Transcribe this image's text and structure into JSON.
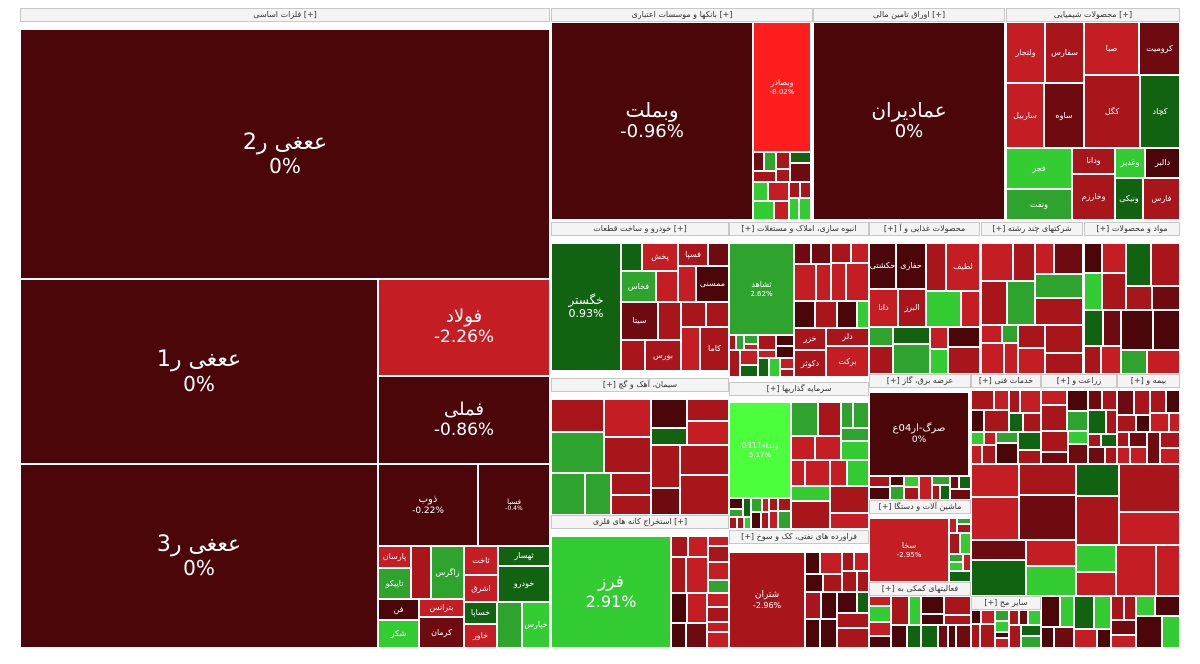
{
  "sectors": [
    {
      "id": "sec-basic-metals",
      "label": "فلزات اساسی [+]"
    },
    {
      "id": "sec-banks",
      "label": "بانکها و موسسات اعتباری [+]"
    },
    {
      "id": "sec-fixed-income",
      "label": "اوراق تامین مالی [+]"
    },
    {
      "id": "sec-chemicals",
      "label": "محصولات شیمیایی [+]"
    },
    {
      "id": "sec-auto",
      "label": "خودرو و ساخت قطعات [+]"
    },
    {
      "id": "sec-multi",
      "label": "[+] انبوه سازی، املاک و مستغلات"
    },
    {
      "id": "sec-food",
      "label": "[+] محصولات غذایی و آ"
    },
    {
      "id": "sec-chains",
      "label": "[+] شرکتهای چند رشته"
    },
    {
      "id": "sec-drugs",
      "label": "[+] مواد و محصولات"
    },
    {
      "id": "sec-cement",
      "label": "[+] سیمان، آهک و گچ"
    },
    {
      "id": "sec-investment",
      "label": "[+] سرمایه گذاریها"
    },
    {
      "id": "sec-utilities",
      "label": "[+] عرضه برق، گاز"
    },
    {
      "id": "sec-services",
      "label": "[+] خدمات فنی"
    },
    {
      "id": "sec-agri",
      "label": "[+] زراعت و"
    },
    {
      "id": "sec-insurance",
      "label": "[+] بیمه و"
    },
    {
      "id": "sec-oil",
      "label": "استخراج کانه های فلزی [+]"
    },
    {
      "id": "sec-nonmetal",
      "label": "[+] فراورده های نفتی، کک و سوخ"
    },
    {
      "id": "sec-machinery",
      "label": "[+] ماشین آلات و دستگا"
    },
    {
      "id": "sec-support",
      "label": "[+] فعالیتهای کمکی به"
    },
    {
      "id": "sec-other",
      "label": "[+] سایر مح"
    }
  ],
  "tiles": [
    {
      "id": "t1",
      "symbol": "ععغی ر2",
      "change": "0%"
    },
    {
      "id": "t2",
      "symbol": "ععغی ر1",
      "change": "0%"
    },
    {
      "id": "t3",
      "symbol": "ععغی ر3",
      "change": "0%"
    },
    {
      "id": "t4",
      "symbol": "فولاد",
      "change": "-2.26%"
    },
    {
      "id": "t5",
      "symbol": "فملی",
      "change": "-0.86%"
    },
    {
      "id": "t6",
      "symbol": "ذوب",
      "change": "-0.22%"
    },
    {
      "id": "t7",
      "symbol": "فسبا",
      "change": "-0.4%"
    },
    {
      "id": "t8",
      "symbol": "وبملت",
      "change": "-0.96%"
    },
    {
      "id": "t9",
      "symbol": "وبصادر",
      "change": "-8.02%"
    },
    {
      "id": "t10",
      "symbol": "عماديران",
      "change": "0%"
    },
    {
      "id": "t11",
      "symbol": "خگستر",
      "change": "0.93%"
    },
    {
      "id": "t12",
      "symbol": "ثشاهد",
      "change": "2.62%"
    },
    {
      "id": "t13",
      "symbol": "فرز",
      "change": "2.91%"
    },
    {
      "id": "t14",
      "symbol": "شتران",
      "change": "-2.96%"
    },
    {
      "id": "t15",
      "symbol": "صرگ-ار04ع",
      "change": "0%"
    },
    {
      "id": "t16",
      "symbol": "ونداء0311",
      "change": "5.17%"
    },
    {
      "id": "t17",
      "symbol": "سخا",
      "change": "-2.95%"
    }
  ],
  "small_labels": [
    "پارسان",
    "تاپیکو",
    "زاگرس",
    "فن",
    "شکر",
    "بترانس",
    "کرمان",
    "ثاخت",
    "اشرق",
    "ثهسار",
    "خودرو",
    "خساپا",
    "خاور",
    "خپارس",
    "ولتجار",
    "سفارس",
    "ساربیل",
    "ساوه",
    "صبا",
    "کروميت",
    "کگل",
    "کچاد",
    "فجر",
    "ونفت",
    "ودانا",
    "وخارزم",
    "وغدیر",
    "دالبر",
    "ونیکی",
    "فارس",
    "پخش",
    "فخاس",
    "فسپا",
    "ممسنی",
    "سیتا",
    "بورس",
    "کاما",
    "خزر",
    "دکوثر",
    "دلر",
    "برکت",
    "حکشتی",
    "حفاری",
    "دانا",
    "البرز",
    "لطيف"
  ]
}
